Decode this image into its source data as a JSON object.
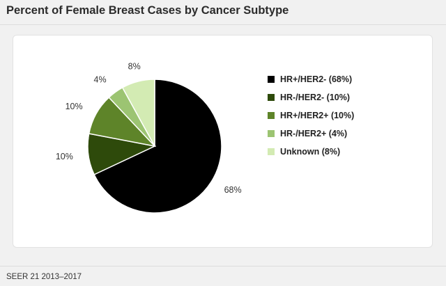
{
  "header": {
    "title": "Percent of Female Breast Cases by Cancer Subtype"
  },
  "footer": {
    "source": "SEER 21 2013–2017"
  },
  "chart_data": {
    "type": "pie",
    "title": "Percent of Female Breast Cases by Cancer Subtype",
    "legend_position": "right",
    "slices": [
      {
        "name": "HR+/HER2- (68%)",
        "value": 68,
        "label": "68%",
        "color": "#000000"
      },
      {
        "name": "HR-/HER2- (10%)",
        "value": 10,
        "label": "10%",
        "color": "#2e4a0b"
      },
      {
        "name": "HR+/HER2+ (10%)",
        "value": 10,
        "label": "10%",
        "color": "#5e8429"
      },
      {
        "name": "HR-/HER2+ (4%)",
        "value": 4,
        "label": "4%",
        "color": "#9cc472"
      },
      {
        "name": "Unknown (8%)",
        "value": 8,
        "label": "8%",
        "color": "#d3ebb3"
      }
    ]
  }
}
